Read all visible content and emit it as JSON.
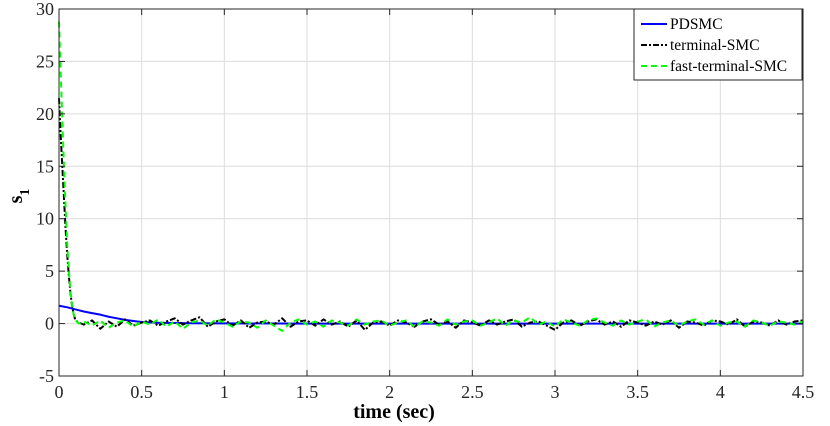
{
  "chart_data": {
    "type": "line",
    "title": "",
    "xlabel": "time (sec)",
    "ylabel_main": "s",
    "ylabel_sub": "1",
    "xlim": [
      0,
      4.5
    ],
    "ylim": [
      -5,
      30
    ],
    "xticks": [
      "0",
      "0.5",
      "1",
      "1.5",
      "2",
      "2.5",
      "3",
      "3.5",
      "4",
      "4.5"
    ],
    "yticks": [
      "-5",
      "0",
      "5",
      "10",
      "15",
      "20",
      "25",
      "30"
    ],
    "grid": true,
    "legend_position": "top-right",
    "series": [
      {
        "name": "PDSMC",
        "color": "#0000ff",
        "style": "solid",
        "x": [
          0,
          0.05,
          0.1,
          0.15,
          0.2,
          0.25,
          0.3,
          0.35,
          0.4,
          0.45,
          0.5,
          0.6,
          0.8,
          1.0,
          1.5,
          2.0,
          2.5,
          3.0,
          3.5,
          4.0,
          4.5
        ],
        "y": [
          1.7,
          1.55,
          1.35,
          1.15,
          1.0,
          0.85,
          0.65,
          0.5,
          0.35,
          0.25,
          0.15,
          0.08,
          0.03,
          0.02,
          0.0,
          0.0,
          0.0,
          0.0,
          0.0,
          0.0,
          0.0
        ]
      },
      {
        "name": "terminal-SMC",
        "color": "#000000",
        "style": "dashdot",
        "x": [
          0,
          0.01,
          0.02,
          0.03,
          0.04,
          0.05,
          0.06,
          0.07,
          0.08,
          0.09,
          0.1,
          0.12,
          0.15,
          0.2,
          0.25,
          0.3,
          0.35,
          0.4,
          0.45,
          0.5,
          0.55,
          0.6,
          0.65,
          0.7,
          0.75,
          0.8,
          0.85,
          0.9,
          0.95,
          1.0,
          1.05,
          1.1,
          1.15,
          1.2,
          1.25,
          1.3,
          1.35,
          1.4,
          1.45,
          1.5,
          1.55,
          1.6,
          1.65,
          1.7,
          1.75,
          1.8,
          1.85,
          1.9,
          1.95,
          2.0,
          2.05,
          2.1,
          2.15,
          2.2,
          2.25,
          2.3,
          2.35,
          2.4,
          2.45,
          2.5,
          2.55,
          2.6,
          2.65,
          2.7,
          2.75,
          2.8,
          2.85,
          2.9,
          2.95,
          3.0,
          3.05,
          3.1,
          3.15,
          3.2,
          3.25,
          3.3,
          3.35,
          3.4,
          3.45,
          3.5,
          3.55,
          3.6,
          3.65,
          3.7,
          3.75,
          3.8,
          3.85,
          3.9,
          3.95,
          4.0,
          4.05,
          4.1,
          4.15,
          4.2,
          4.25,
          4.3,
          4.35,
          4.4,
          4.45,
          4.5
        ],
        "y": [
          21.5,
          18.0,
          15.0,
          12.0,
          9.0,
          6.5,
          4.5,
          2.8,
          1.6,
          0.8,
          0.3,
          0.1,
          -0.1,
          0.3,
          -0.5,
          0.2,
          -0.3,
          0.4,
          -0.2,
          0.1,
          0.3,
          -0.2,
          0.2,
          0.5,
          -0.1,
          0.3,
          0.6,
          -0.3,
          0.2,
          0.4,
          -0.2,
          0.3,
          -0.4,
          0.1,
          0.2,
          -0.1,
          0.5,
          -0.3,
          0.2,
          0.3,
          -0.2,
          0.4,
          -0.1,
          0.2,
          -0.3,
          0.3,
          -0.6,
          0.1,
          0.2,
          -0.2,
          0.3,
          0.1,
          -0.3,
          0.2,
          0.4,
          -0.1,
          0.2,
          -0.4,
          0.3,
          0.1,
          -0.2,
          0.3,
          -0.1,
          0.2,
          0.4,
          -0.3,
          0.1,
          0.2,
          -0.2,
          -0.6,
          0.1,
          0.3,
          -0.2,
          0.2,
          0.4,
          -0.1,
          0.2,
          -0.3,
          0.3,
          0.1,
          -0.2,
          0.2,
          -0.1,
          0.3,
          -0.4,
          0.2,
          0.1,
          -0.2,
          0.3,
          0.2,
          -0.1,
          0.4,
          -0.3,
          0.2,
          0.1,
          -0.2,
          0.3,
          -0.1,
          0.2,
          0.3
        ]
      },
      {
        "name": "fast-terminal-SMC",
        "color": "#00ff00",
        "style": "dashed",
        "x": [
          0,
          0.01,
          0.02,
          0.03,
          0.04,
          0.05,
          0.06,
          0.07,
          0.08,
          0.09,
          0.1,
          0.12,
          0.15,
          0.2,
          0.25,
          0.3,
          0.35,
          0.4,
          0.45,
          0.5,
          0.55,
          0.6,
          0.65,
          0.7,
          0.75,
          0.8,
          0.85,
          0.9,
          0.95,
          1.0,
          1.05,
          1.1,
          1.15,
          1.2,
          1.25,
          1.3,
          1.35,
          1.4,
          1.45,
          1.5,
          1.55,
          1.6,
          1.65,
          1.7,
          1.75,
          1.8,
          1.85,
          1.9,
          1.95,
          2.0,
          2.05,
          2.1,
          2.15,
          2.2,
          2.25,
          2.3,
          2.35,
          2.4,
          2.45,
          2.5,
          2.55,
          2.6,
          2.65,
          2.7,
          2.75,
          2.8,
          2.85,
          2.9,
          2.95,
          3.0,
          3.05,
          3.1,
          3.15,
          3.2,
          3.25,
          3.3,
          3.35,
          3.4,
          3.45,
          3.5,
          3.55,
          3.6,
          3.65,
          3.7,
          3.75,
          3.8,
          3.85,
          3.9,
          3.95,
          4.0,
          4.05,
          4.1,
          4.15,
          4.2,
          4.25,
          4.3,
          4.35,
          4.4,
          4.45,
          4.5
        ],
        "y": [
          28.8,
          24.0,
          19.5,
          15.0,
          11.0,
          7.5,
          5.0,
          3.0,
          1.6,
          0.8,
          0.3,
          0.0,
          0.2,
          -0.2,
          0.3,
          -0.4,
          0.1,
          0.3,
          -0.3,
          0.2,
          -0.1,
          0.4,
          -0.3,
          0.2,
          -0.5,
          0.1,
          0.3,
          -0.2,
          0.4,
          0.1,
          -0.3,
          0.2,
          0.1,
          -0.4,
          0.3,
          -0.2,
          -0.7,
          0.1,
          0.4,
          -0.1,
          0.2,
          -0.3,
          0.3,
          0.1,
          -0.2,
          0.4,
          -0.1,
          0.2,
          0.3,
          -0.2,
          0.1,
          0.3,
          -0.3,
          0.2,
          0.1,
          -0.2,
          0.4,
          -0.1,
          0.2,
          0.3,
          -0.2,
          0.1,
          0.5,
          -0.2,
          0.3,
          0.1,
          0.6,
          -0.1,
          0.2,
          -0.3,
          0.4,
          0.1,
          -0.2,
          0.3,
          0.5,
          0.1,
          -0.2,
          0.3,
          -0.1,
          0.2,
          0.4,
          -0.3,
          0.1,
          0.3,
          -0.2,
          0.2,
          0.4,
          -0.1,
          0.3,
          -0.2,
          0.1,
          0.2,
          -0.3,
          0.3,
          0.1,
          -0.2,
          0.2,
          0.1,
          -0.1,
          0.2
        ]
      }
    ]
  }
}
